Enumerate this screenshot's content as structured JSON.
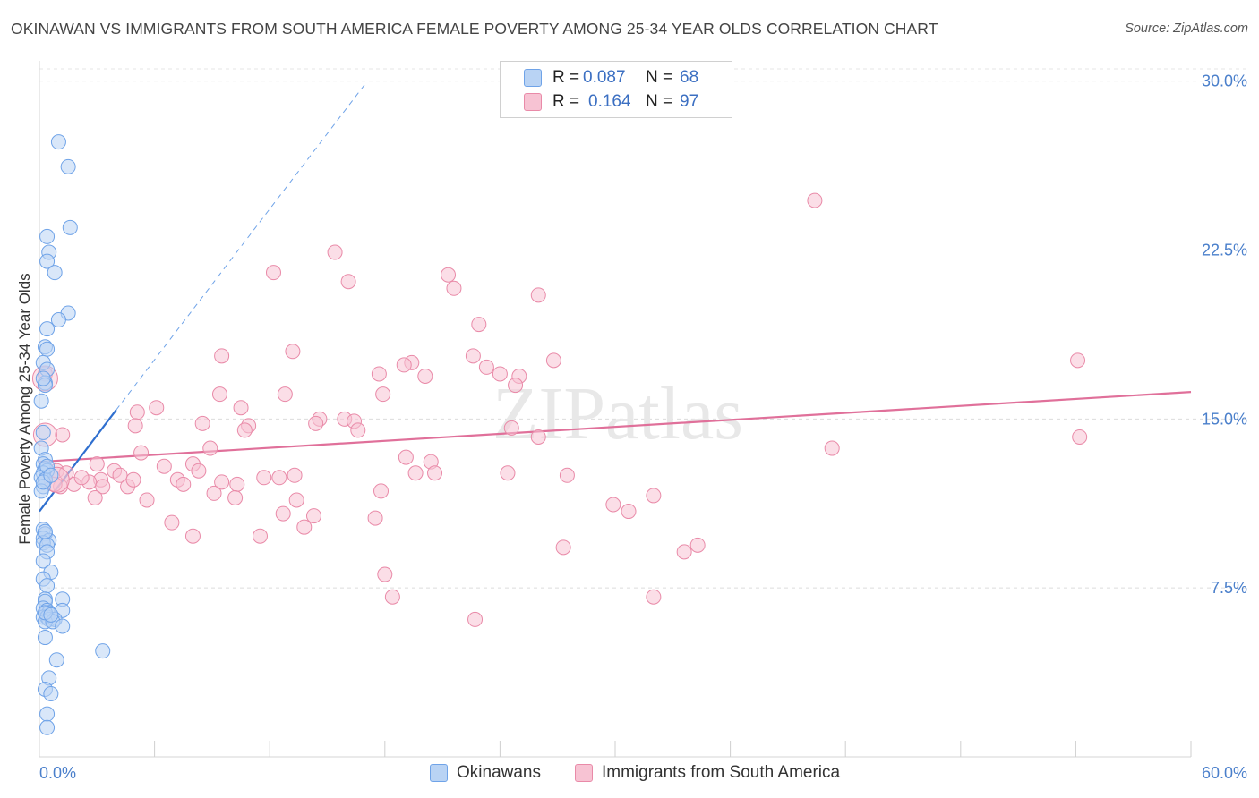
{
  "header": {
    "title": "OKINAWAN VS IMMIGRANTS FROM SOUTH AMERICA FEMALE POVERTY AMONG 25-34 YEAR OLDS CORRELATION CHART",
    "source": "Source: ZipAtlas.com"
  },
  "watermark": "ZIPatlas",
  "colors": {
    "blue": "#6fa3e8",
    "blue_fill": "#b9d3f4",
    "blue_line": "#2f6fcf",
    "pink": "#e98aa8",
    "pink_fill": "#f7c3d3",
    "pink_line": "#e0709a",
    "tick_text": "#4a7fcb"
  },
  "legend": {
    "rows": [
      {
        "r_label": "R =",
        "r_value": "0.087",
        "n_label": "N =",
        "n_value": "68"
      },
      {
        "r_label": "R =",
        "r_value": "0.164",
        "n_label": "N =",
        "n_value": "97"
      }
    ],
    "bottom": [
      "Okinawans",
      "Immigrants from South America"
    ]
  },
  "chart_data": {
    "type": "scatter",
    "title": "OKINAWAN VS IMMIGRANTS FROM SOUTH AMERICA FEMALE POVERTY AMONG 25-34 YEAR OLDS CORRELATION CHART",
    "xlabel": "",
    "ylabel": "Female Poverty Among 25-34 Year Olds",
    "xlim": [
      0,
      60
    ],
    "ylim": [
      0,
      30.9
    ],
    "x_tick_labels": [
      "0.0%",
      "60.0%"
    ],
    "y_ticks": [
      7.5,
      15.0,
      22.5,
      30.0
    ],
    "y_tick_labels": [
      "7.5%",
      "15.0%",
      "22.5%",
      "30.0%"
    ],
    "grid": true,
    "legend_position": "top-center",
    "series": [
      {
        "name": "Okinawans",
        "r": 0.087,
        "n": 68,
        "trend": {
          "x0": 0,
          "y0": 10.9,
          "x1": 4.0,
          "y1": 15.4,
          "dashed_to_x": 17.0,
          "dashed_to_y": 29.9
        },
        "points": [
          [
            1.0,
            27.3
          ],
          [
            1.5,
            26.2
          ],
          [
            0.4,
            23.1
          ],
          [
            1.6,
            23.5
          ],
          [
            0.5,
            22.4
          ],
          [
            0.4,
            22.0
          ],
          [
            0.8,
            21.5
          ],
          [
            1.5,
            19.7
          ],
          [
            1.0,
            19.4
          ],
          [
            0.4,
            19.0
          ],
          [
            0.3,
            18.2
          ],
          [
            0.4,
            18.1
          ],
          [
            0.2,
            17.5
          ],
          [
            0.4,
            17.2
          ],
          [
            0.3,
            16.6
          ],
          [
            0.3,
            16.5
          ],
          [
            0.1,
            15.8
          ],
          [
            0.2,
            14.4
          ],
          [
            0.1,
            13.7
          ],
          [
            0.3,
            13.2
          ],
          [
            0.2,
            13.0
          ],
          [
            0.3,
            12.8
          ],
          [
            0.4,
            12.7
          ],
          [
            0.2,
            12.6
          ],
          [
            0.1,
            12.4
          ],
          [
            0.3,
            12.3
          ],
          [
            0.2,
            12.0
          ],
          [
            0.1,
            11.8
          ],
          [
            0.2,
            10.1
          ],
          [
            0.3,
            9.9
          ],
          [
            0.2,
            9.7
          ],
          [
            0.5,
            9.6
          ],
          [
            0.2,
            9.5
          ],
          [
            0.4,
            9.4
          ],
          [
            0.4,
            9.1
          ],
          [
            0.2,
            8.7
          ],
          [
            0.6,
            8.2
          ],
          [
            0.2,
            7.9
          ],
          [
            0.4,
            7.6
          ],
          [
            0.3,
            7.0
          ],
          [
            0.3,
            6.9
          ],
          [
            1.2,
            7.0
          ],
          [
            0.2,
            6.6
          ],
          [
            0.4,
            6.5
          ],
          [
            0.5,
            6.4
          ],
          [
            1.2,
            6.5
          ],
          [
            0.2,
            6.2
          ],
          [
            0.4,
            6.2
          ],
          [
            0.5,
            6.1
          ],
          [
            0.8,
            6.1
          ],
          [
            0.3,
            6.0
          ],
          [
            0.7,
            6.0
          ],
          [
            1.2,
            5.8
          ],
          [
            0.3,
            5.3
          ],
          [
            3.3,
            4.7
          ],
          [
            0.9,
            4.3
          ],
          [
            0.5,
            3.5
          ],
          [
            0.3,
            3.0
          ],
          [
            0.6,
            2.8
          ],
          [
            0.4,
            1.9
          ],
          [
            0.4,
            1.3
          ],
          [
            0.3,
            6.4
          ],
          [
            0.6,
            6.3
          ],
          [
            0.2,
            12.2
          ],
          [
            0.4,
            12.9
          ],
          [
            0.6,
            12.5
          ],
          [
            0.2,
            16.8
          ],
          [
            0.3,
            10.0
          ]
        ]
      },
      {
        "name": "Immigrants from South America",
        "r": 0.164,
        "n": 97,
        "trend": {
          "x0": 0,
          "y0": 13.1,
          "x1": 60,
          "y1": 16.2
        },
        "points": [
          [
            40.4,
            24.7
          ],
          [
            15.4,
            22.4
          ],
          [
            12.2,
            21.5
          ],
          [
            16.1,
            21.1
          ],
          [
            21.3,
            21.4
          ],
          [
            21.6,
            20.8
          ],
          [
            26.0,
            20.5
          ],
          [
            22.9,
            19.2
          ],
          [
            13.2,
            18.0
          ],
          [
            22.6,
            17.8
          ],
          [
            9.5,
            17.8
          ],
          [
            19.4,
            17.5
          ],
          [
            19.0,
            17.4
          ],
          [
            26.8,
            17.6
          ],
          [
            23.3,
            17.3
          ],
          [
            24.0,
            17.0
          ],
          [
            17.7,
            17.0
          ],
          [
            20.1,
            16.9
          ],
          [
            25.0,
            16.9
          ],
          [
            24.8,
            16.5
          ],
          [
            54.1,
            17.6
          ],
          [
            9.4,
            16.1
          ],
          [
            12.8,
            16.1
          ],
          [
            17.9,
            16.1
          ],
          [
            6.1,
            15.5
          ],
          [
            10.5,
            15.5
          ],
          [
            5.1,
            15.3
          ],
          [
            14.6,
            15.0
          ],
          [
            15.9,
            15.0
          ],
          [
            16.4,
            14.9
          ],
          [
            14.4,
            14.8
          ],
          [
            10.9,
            14.7
          ],
          [
            8.5,
            14.8
          ],
          [
            5.0,
            14.7
          ],
          [
            10.7,
            14.5
          ],
          [
            24.6,
            14.6
          ],
          [
            16.6,
            14.5
          ],
          [
            26.0,
            14.2
          ],
          [
            8.9,
            13.7
          ],
          [
            5.3,
            13.5
          ],
          [
            19.1,
            13.3
          ],
          [
            20.4,
            13.1
          ],
          [
            41.3,
            13.7
          ],
          [
            54.2,
            14.2
          ],
          [
            1.2,
            14.3
          ],
          [
            0.3,
            17.0
          ],
          [
            3.0,
            13.0
          ],
          [
            3.9,
            12.7
          ],
          [
            6.5,
            12.9
          ],
          [
            8.0,
            13.0
          ],
          [
            8.3,
            12.7
          ],
          [
            7.2,
            12.3
          ],
          [
            7.5,
            12.1
          ],
          [
            9.5,
            12.2
          ],
          [
            10.3,
            12.1
          ],
          [
            11.7,
            12.4
          ],
          [
            12.5,
            12.4
          ],
          [
            13.3,
            12.5
          ],
          [
            20.6,
            12.6
          ],
          [
            19.6,
            12.6
          ],
          [
            24.4,
            12.6
          ],
          [
            27.5,
            12.5
          ],
          [
            4.2,
            12.5
          ],
          [
            3.2,
            12.3
          ],
          [
            2.6,
            12.2
          ],
          [
            1.8,
            12.1
          ],
          [
            1.1,
            12.0
          ],
          [
            0.9,
            12.7
          ],
          [
            3.3,
            12.0
          ],
          [
            4.6,
            12.0
          ],
          [
            4.9,
            12.3
          ],
          [
            9.1,
            11.7
          ],
          [
            10.2,
            11.5
          ],
          [
            17.8,
            11.8
          ],
          [
            5.6,
            11.4
          ],
          [
            13.4,
            11.4
          ],
          [
            32.0,
            11.6
          ],
          [
            29.9,
            11.2
          ],
          [
            30.7,
            10.9
          ],
          [
            12.7,
            10.8
          ],
          [
            14.3,
            10.7
          ],
          [
            17.5,
            10.6
          ],
          [
            6.9,
            10.4
          ],
          [
            13.8,
            10.2
          ],
          [
            8.0,
            9.8
          ],
          [
            11.5,
            9.8
          ],
          [
            34.3,
            9.4
          ],
          [
            33.6,
            9.1
          ],
          [
            27.3,
            9.3
          ],
          [
            18.0,
            8.1
          ],
          [
            18.4,
            7.1
          ],
          [
            32.0,
            7.1
          ],
          [
            22.7,
            6.1
          ],
          [
            2.9,
            11.5
          ],
          [
            1.4,
            12.6
          ],
          [
            0.8,
            12.1
          ],
          [
            2.2,
            12.4
          ]
        ]
      }
    ]
  }
}
